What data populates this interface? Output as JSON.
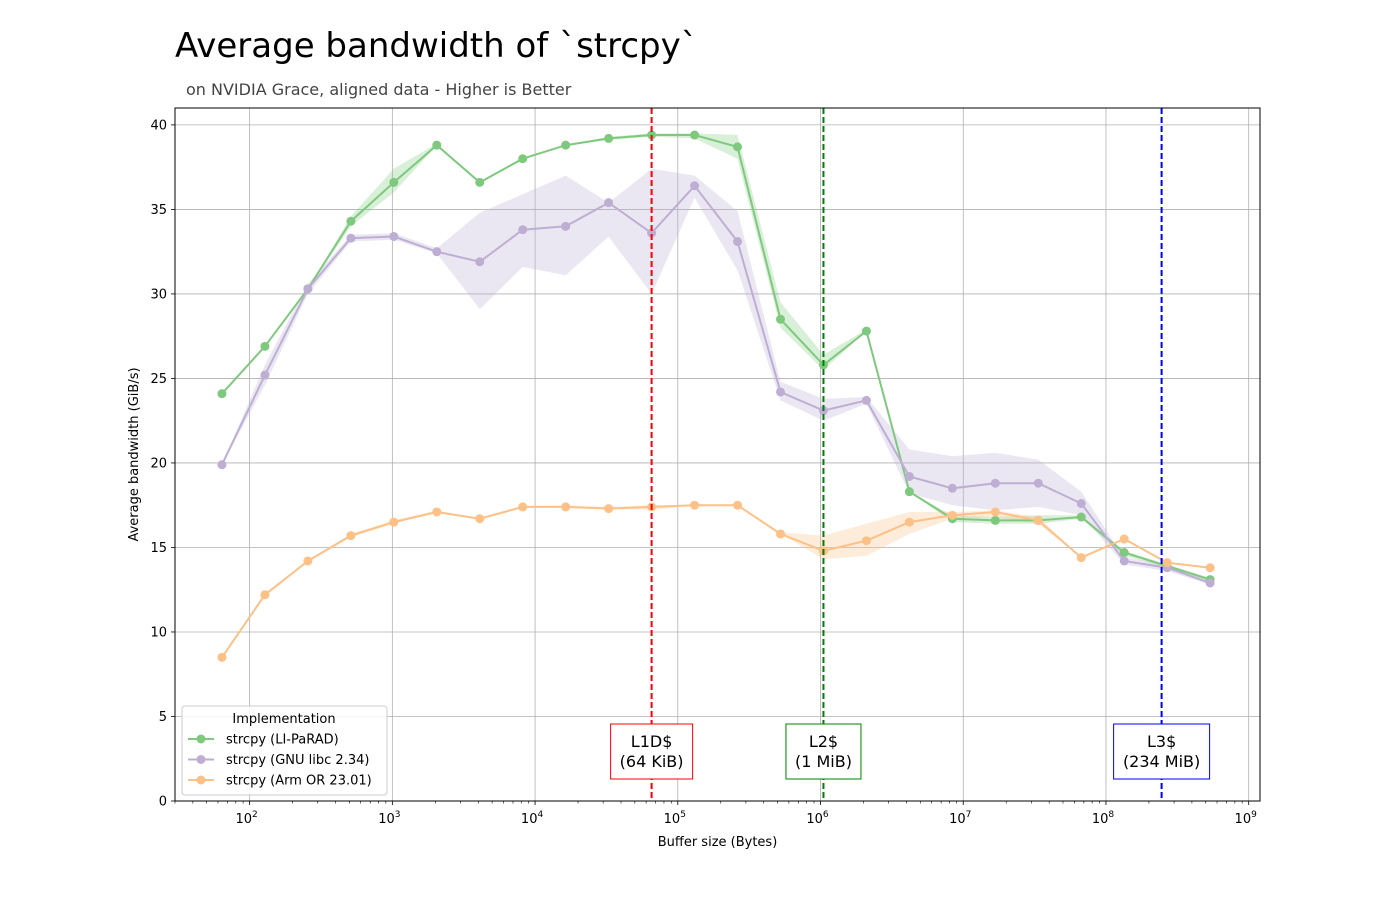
{
  "chart_data": {
    "type": "line",
    "title": "Average bandwidth of `strcpy`",
    "subtitle": "on NVIDIA Grace, aligned data - Higher is Better",
    "xlabel": "Buffer size (Bytes)",
    "ylabel": "Average bandwidth (GiB/s)",
    "xscale": "log",
    "xlim": [
      30,
      1200000000
    ],
    "ylim": [
      0,
      41
    ],
    "yticks": [
      0,
      5,
      10,
      15,
      20,
      25,
      30,
      35,
      40
    ],
    "xticks": [
      {
        "base": "10",
        "exp": "2"
      },
      {
        "base": "10",
        "exp": "3"
      },
      {
        "base": "10",
        "exp": "4"
      },
      {
        "base": "10",
        "exp": "5"
      },
      {
        "base": "10",
        "exp": "6"
      },
      {
        "base": "10",
        "exp": "7"
      },
      {
        "base": "10",
        "exp": "8"
      },
      {
        "base": "10",
        "exp": "9"
      }
    ],
    "grid": true,
    "legend": {
      "title": "Implementation",
      "position": "lower-left"
    },
    "x": [
      64,
      128,
      256,
      512,
      1024,
      2048,
      4096,
      8192,
      16384,
      32768,
      65536,
      131072,
      262144,
      524288,
      1048576,
      2097152,
      4194304,
      8388608,
      16777216,
      33554432,
      67108864,
      134217728,
      268435456,
      536870912
    ],
    "series": [
      {
        "name": "strcpy (LI-PaRAD)",
        "color": "#7fc97f",
        "values": [
          24.1,
          26.9,
          30.3,
          34.3,
          36.6,
          38.8,
          36.6,
          38.0,
          38.8,
          39.2,
          39.4,
          39.4,
          38.7,
          28.5,
          25.8,
          27.8,
          18.3,
          16.7,
          16.6,
          16.6,
          16.8,
          14.7,
          13.9,
          13.1
        ],
        "band_low": [
          24.1,
          26.9,
          30.3,
          34.0,
          36.0,
          38.8,
          36.6,
          38.0,
          38.8,
          39.1,
          39.3,
          39.2,
          38.0,
          28.0,
          25.5,
          27.8,
          18.3,
          16.5,
          16.4,
          16.4,
          16.7,
          14.5,
          13.8,
          13.0
        ],
        "band_high": [
          24.1,
          26.9,
          30.3,
          34.6,
          37.4,
          38.9,
          36.6,
          38.0,
          38.8,
          39.3,
          39.5,
          39.5,
          39.4,
          29.5,
          26.4,
          27.9,
          18.3,
          16.9,
          16.8,
          16.9,
          16.9,
          14.8,
          14.0,
          13.2
        ]
      },
      {
        "name": "strcpy (GNU libc 2.34)",
        "color": "#beaed4",
        "values": [
          19.9,
          25.2,
          30.3,
          33.3,
          33.4,
          32.5,
          31.9,
          33.8,
          34.0,
          35.4,
          33.6,
          36.4,
          33.1,
          24.2,
          23.1,
          23.7,
          19.2,
          18.5,
          18.8,
          18.8,
          17.6,
          14.2,
          13.8,
          12.9
        ],
        "band_low": [
          19.9,
          24.6,
          30.0,
          33.1,
          33.2,
          32.4,
          29.1,
          31.6,
          31.1,
          33.4,
          30.0,
          35.7,
          31.4,
          23.7,
          22.5,
          23.5,
          18.2,
          17.5,
          17.2,
          17.4,
          16.9,
          14.0,
          13.6,
          12.8
        ],
        "band_high": [
          19.9,
          25.8,
          30.6,
          33.5,
          33.6,
          32.7,
          34.8,
          35.9,
          37.0,
          35.4,
          37.4,
          37.0,
          34.9,
          24.8,
          23.8,
          23.9,
          20.8,
          20.4,
          20.6,
          20.2,
          18.3,
          14.4,
          14.0,
          13.1
        ]
      },
      {
        "name": "strcpy (Arm OR 23.01)",
        "color": "#fdc086",
        "values": [
          8.5,
          12.2,
          14.2,
          15.7,
          16.5,
          17.1,
          16.7,
          17.4,
          17.4,
          17.3,
          17.4,
          17.5,
          17.5,
          15.8,
          14.8,
          15.4,
          16.5,
          16.9,
          17.1,
          16.6,
          14.4,
          15.5,
          14.1,
          13.8
        ],
        "band_low": [
          8.5,
          12.2,
          14.2,
          15.6,
          16.4,
          17.1,
          16.7,
          17.4,
          17.4,
          17.3,
          17.2,
          17.5,
          17.5,
          15.8,
          14.3,
          14.5,
          15.8,
          16.7,
          16.8,
          16.4,
          14.4,
          15.5,
          14.1,
          13.8
        ],
        "band_high": [
          8.5,
          12.2,
          14.2,
          15.8,
          16.6,
          17.2,
          16.7,
          17.4,
          17.5,
          17.4,
          17.5,
          17.5,
          17.5,
          15.9,
          15.7,
          16.4,
          17.1,
          17.1,
          17.2,
          16.8,
          14.4,
          15.5,
          14.1,
          13.8
        ]
      }
    ],
    "annotations": [
      {
        "x": 65536,
        "color": "#ff0000",
        "line1": "L1D$",
        "line2": "(64 KiB)"
      },
      {
        "x": 1048576,
        "color": "#008000",
        "line1": "L2$",
        "line2": "(1 MiB)"
      },
      {
        "x": 245366784,
        "color": "#0000ff",
        "line1": "L3$",
        "line2": "(234 MiB)"
      }
    ]
  }
}
